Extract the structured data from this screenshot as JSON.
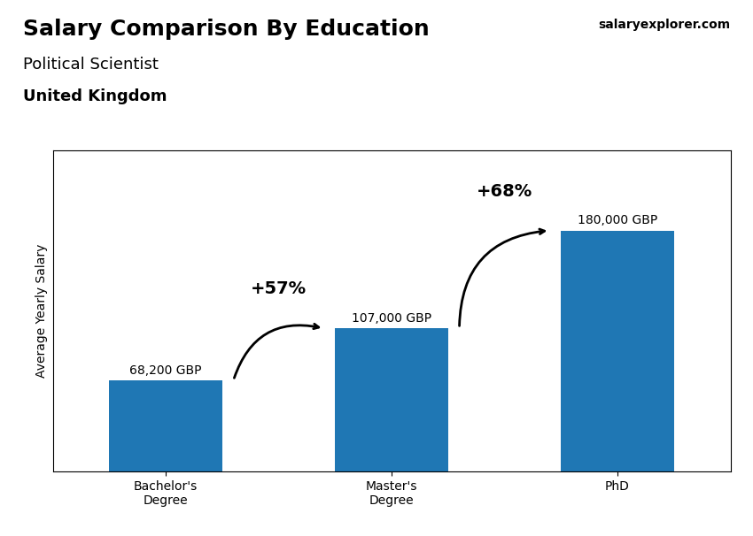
{
  "chart_data": {
    "type": "bar",
    "title": "Salary Comparison By Education",
    "subtitle": "Political Scientist",
    "annotations": [
      "United Kingdom",
      "salaryexplorer.com"
    ],
    "categories": [
      "Bachelor's\nDegree",
      "Master's\nDegree",
      "PhD"
    ],
    "values": [
      68200,
      107000,
      180000
    ],
    "value_labels": [
      "68,200 GBP",
      "107,000 GBP",
      "180,000 GBP"
    ],
    "data_labels": true,
    "changes": [
      {
        "from": "Bachelor's\nDegree",
        "to": "Master's\nDegree",
        "value": 57,
        "label": "+57%"
      },
      {
        "from": "Master's\nDegree",
        "to": "PhD",
        "value": 68,
        "label": "+68%"
      }
    ],
    "ylabel": "Average Yearly Salary",
    "ylim": [
      0,
      240000
    ],
    "yticks": [],
    "tick_labels": "x",
    "grid": false
  }
}
